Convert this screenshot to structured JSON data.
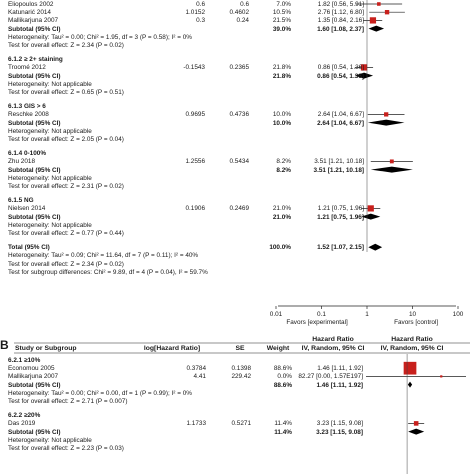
{
  "chart_data": [
    {
      "type": "forest",
      "panel": "",
      "measure": "Hazard Ratio",
      "method": "IV, Random, 95% CI",
      "x_scale": "log",
      "xlim": [
        0.01,
        100
      ],
      "axis_ticks": [
        "0.01",
        "0.1",
        "1",
        "10",
        "100"
      ],
      "favors_left": "Favors [experimental]",
      "favors_right": "Favors [control]",
      "rows": [
        {
          "kind": "study",
          "label": "Eliopoulos 2002",
          "loghr": "0.6",
          "se": "0.6",
          "weight": "7.0%",
          "ci": "1.82 [0.56, 5.91]",
          "hr": 1.82,
          "lo": 0.56,
          "hi": 5.91
        },
        {
          "kind": "study",
          "label": "Katunarić 2014",
          "loghr": "1.0152",
          "se": "0.4602",
          "weight": "10.5%",
          "ci": "2.76 [1.12, 6.80]",
          "hr": 2.76,
          "lo": 1.12,
          "hi": 6.8
        },
        {
          "kind": "study",
          "label": "Mallikarjuna 2007",
          "loghr": "0.3",
          "se": "0.24",
          "weight": "21.5%",
          "ci": "1.35 [0.84, 2.16]",
          "hr": 1.35,
          "lo": 0.84,
          "hi": 2.16
        },
        {
          "kind": "subtotal",
          "label": "Subtotal (95% CI)",
          "weight": "39.0%",
          "ci": "1.60 [1.08, 2.37]",
          "hr": 1.6,
          "lo": 1.08,
          "hi": 2.37
        },
        {
          "kind": "note",
          "label": "Heterogeneity: Tau² = 0.00; Chi² = 1.95, df = 3 (P = 0.58); I² = 0%"
        },
        {
          "kind": "note",
          "label": "Test for overall effect: Z = 2.34 (P = 0.02)"
        },
        {
          "kind": "gap"
        },
        {
          "kind": "group",
          "label": "6.1.2 ≥ 2+ staining"
        },
        {
          "kind": "study",
          "label": "Troomé 2012",
          "loghr": "-0.1543",
          "se": "0.2365",
          "weight": "21.8%",
          "ci": "0.86 [0.54, 1.36]",
          "hr": 0.86,
          "lo": 0.54,
          "hi": 1.36
        },
        {
          "kind": "subtotal",
          "label": "Subtotal (95% CI)",
          "weight": "21.8%",
          "ci": "0.86 [0.54, 1.36]",
          "hr": 0.86,
          "lo": 0.54,
          "hi": 1.36
        },
        {
          "kind": "note",
          "label": "Heterogeneity: Not applicable"
        },
        {
          "kind": "note",
          "label": "Test for overall effect: Z = 0.65 (P = 0.51)"
        },
        {
          "kind": "gap"
        },
        {
          "kind": "group",
          "label": "6.1.3 GIS > 6"
        },
        {
          "kind": "study",
          "label": "Reschke 2008",
          "loghr": "0.9695",
          "se": "0.4736",
          "weight": "10.0%",
          "ci": "2.64 [1.04, 6.67]",
          "hr": 2.64,
          "lo": 1.04,
          "hi": 6.67
        },
        {
          "kind": "subtotal",
          "label": "Subtotal (95% CI)",
          "weight": "10.0%",
          "ci": "2.64 [1.04, 6.67]",
          "hr": 2.64,
          "lo": 1.04,
          "hi": 6.67
        },
        {
          "kind": "note",
          "label": "Heterogeneity: Not applicable"
        },
        {
          "kind": "note",
          "label": "Test for overall effect: Z = 2.05 (P = 0.04)"
        },
        {
          "kind": "gap"
        },
        {
          "kind": "group",
          "label": "6.1.4 0-100%"
        },
        {
          "kind": "study",
          "label": "Zhu 2018",
          "loghr": "1.2556",
          "se": "0.5434",
          "weight": "8.2%",
          "ci": "3.51 [1.21, 10.18]",
          "hr": 3.51,
          "lo": 1.21,
          "hi": 10.18
        },
        {
          "kind": "subtotal",
          "label": "Subtotal (95% CI)",
          "weight": "8.2%",
          "ci": "3.51 [1.21, 10.18]",
          "hr": 3.51,
          "lo": 1.21,
          "hi": 10.18
        },
        {
          "kind": "note",
          "label": "Heterogeneity: Not applicable"
        },
        {
          "kind": "note",
          "label": "Test for overall effect: Z = 2.31 (P = 0.02)"
        },
        {
          "kind": "gap"
        },
        {
          "kind": "group",
          "label": "6.1.5 NG"
        },
        {
          "kind": "study",
          "label": "Nielsen 2014",
          "loghr": "0.1906",
          "se": "0.2469",
          "weight": "21.0%",
          "ci": "1.21 [0.75, 1.96]",
          "hr": 1.21,
          "lo": 0.75,
          "hi": 1.96
        },
        {
          "kind": "subtotal",
          "label": "Subtotal (95% CI)",
          "weight": "21.0%",
          "ci": "1.21 [0.75, 1.96]",
          "hr": 1.21,
          "lo": 0.75,
          "hi": 1.96
        },
        {
          "kind": "note",
          "label": "Heterogeneity: Not applicable"
        },
        {
          "kind": "note",
          "label": "Test for overall effect: Z = 0.77 (P = 0.44)"
        },
        {
          "kind": "gap"
        },
        {
          "kind": "total",
          "label": "Total (95% CI)",
          "weight": "100.0%",
          "ci": "1.52 [1.07, 2.15]",
          "hr": 1.52,
          "lo": 1.07,
          "hi": 2.15
        },
        {
          "kind": "note",
          "label": "Heterogeneity: Tau² = 0.09; Chi² = 11.64, df = 7 (P = 0.11); I² = 40%"
        },
        {
          "kind": "note",
          "label": "Test for overall effect: Z = 2.34 (P = 0.02)"
        },
        {
          "kind": "note",
          "label": "Test for subgroup differences: Chi² = 9.89, df = 4 (P = 0.04), I² = 59.7%"
        }
      ]
    },
    {
      "type": "forest",
      "panel": "B",
      "measure": "Hazard Ratio",
      "method": "IV, Random, 95% CI",
      "x_scale": "log",
      "columns": {
        "study": "Study or Subgroup",
        "loghr": "log[Hazard Ratio]",
        "se": "SE",
        "weight": "Weight",
        "ci_head_1": "Hazard Ratio",
        "ci_head_2": "IV, Random, 95% CI",
        "plot_head_1": "Hazard Ratio",
        "plot_head_2": "IV, Random, 95% CI"
      },
      "rows": [
        {
          "kind": "group",
          "label": "6.2.1 ≥10%"
        },
        {
          "kind": "study",
          "label": "Economou 2005",
          "loghr": "0.3784",
          "se": "0.1398",
          "weight": "88.6%",
          "ci": "1.46 [1.11, 1.92]",
          "hr": 1.46,
          "lo": 1.11,
          "hi": 1.92
        },
        {
          "kind": "study",
          "label": "Mallikarjuna 2007",
          "loghr": "4.41",
          "se": "229.42",
          "weight": "0.0%",
          "ci": "82.27 [0.00, 1.57E197]",
          "hr": 82.27,
          "lo": 1e-05,
          "hi": 1000000
        },
        {
          "kind": "subtotal",
          "label": "Subtotal (95% CI)",
          "weight": "88.6%",
          "ci": "1.46 [1.11, 1.92]",
          "hr": 1.46,
          "lo": 1.11,
          "hi": 1.92
        },
        {
          "kind": "note",
          "label": "Heterogeneity: Tau² = 0.00; Chi² = 0.00, df = 1 (P = 0.99); I² = 0%"
        },
        {
          "kind": "note",
          "label": "Test for overall effect: Z = 2.71 (P = 0.007)"
        },
        {
          "kind": "gap"
        },
        {
          "kind": "group",
          "label": "6.2.2 ≥20%"
        },
        {
          "kind": "study",
          "label": "Das 2019",
          "loghr": "1.1733",
          "se": "0.5271",
          "weight": "11.4%",
          "ci": "3.23 [1.15, 9.08]",
          "hr": 3.23,
          "lo": 1.15,
          "hi": 9.08
        },
        {
          "kind": "subtotal",
          "label": "Subtotal (95% CI)",
          "weight": "11.4%",
          "ci": "3.23 [1.15, 9.08]",
          "hr": 3.23,
          "lo": 1.15,
          "hi": 9.08
        },
        {
          "kind": "note",
          "label": "Heterogeneity: Not applicable"
        },
        {
          "kind": "note",
          "label": "Test for overall effect: Z = 2.23 (P = 0.03)"
        }
      ]
    }
  ]
}
